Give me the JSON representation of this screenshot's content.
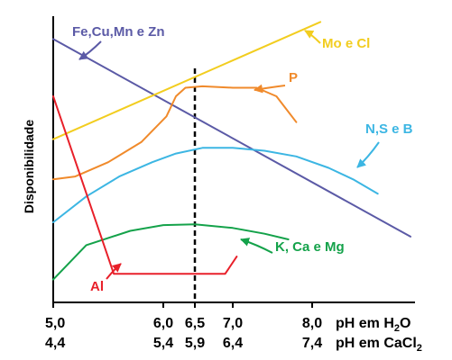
{
  "chart_data": {
    "type": "line",
    "ylabel": "Disponibilidade",
    "x_axis_h2o": {
      "title_prefix": "pH em H",
      "title_sub": "2",
      "title_suffix": "O",
      "ticks": [
        {
          "value": 5.0,
          "label": "5,0"
        },
        {
          "value": 6.0,
          "label": "6,0"
        },
        {
          "value": 6.5,
          "label": "6,5"
        },
        {
          "value": 7.0,
          "label": "7,0"
        },
        {
          "value": 8.0,
          "label": "8,0"
        }
      ]
    },
    "x_axis_cacl2": {
      "title_prefix": "pH em CaCl",
      "title_sub": "2",
      "ticks": [
        "4,4",
        "5,4",
        "5,9",
        "6,4",
        "7,4"
      ]
    },
    "xlim": [
      5.0,
      9.2
    ],
    "ylim": [
      0,
      100
    ],
    "reference_line": {
      "x": 6.5,
      "style": "dashed"
    },
    "series": [
      {
        "name": "Fe,Cu,Mn e Zn",
        "color": "#5b5aa6",
        "points": [
          [
            5.0,
            92
          ],
          [
            9.2,
            23
          ]
        ]
      },
      {
        "name": "Mo e Cl",
        "color": "#f2cd1f",
        "points": [
          [
            5.0,
            57
          ],
          [
            8.1,
            98
          ]
        ]
      },
      {
        "name": "P",
        "color": "#f08a2b",
        "points": [
          [
            5.0,
            43
          ],
          [
            5.2,
            44
          ],
          [
            5.5,
            49
          ],
          [
            5.8,
            56
          ],
          [
            6.05,
            65
          ],
          [
            6.2,
            72
          ],
          [
            6.35,
            75
          ],
          [
            6.6,
            75.5
          ],
          [
            7.0,
            75
          ],
          [
            7.3,
            75
          ],
          [
            7.55,
            72
          ],
          [
            7.8,
            63
          ]
        ]
      },
      {
        "name": "N,S e B",
        "color": "#3cb6e3",
        "points": [
          [
            5.0,
            28
          ],
          [
            5.3,
            37
          ],
          [
            5.6,
            44
          ],
          [
            5.9,
            49
          ],
          [
            6.2,
            52
          ],
          [
            6.6,
            54
          ],
          [
            7.0,
            54
          ],
          [
            7.4,
            53
          ],
          [
            7.8,
            51
          ],
          [
            8.2,
            47
          ],
          [
            8.5,
            43
          ],
          [
            8.8,
            38
          ]
        ]
      },
      {
        "name": "K, Ca e Mg",
        "color": "#14a24a",
        "points": [
          [
            5.0,
            8
          ],
          [
            5.3,
            20
          ],
          [
            5.7,
            25
          ],
          [
            6.0,
            27
          ],
          [
            6.5,
            27.3
          ],
          [
            7.0,
            26
          ],
          [
            7.4,
            24
          ],
          [
            7.7,
            22
          ]
        ]
      },
      {
        "name": "Al",
        "color": "#e8202a",
        "points": [
          [
            5.0,
            72
          ],
          [
            5.55,
            10
          ],
          [
            6.9,
            10
          ],
          [
            7.05,
            16
          ]
        ]
      }
    ]
  }
}
